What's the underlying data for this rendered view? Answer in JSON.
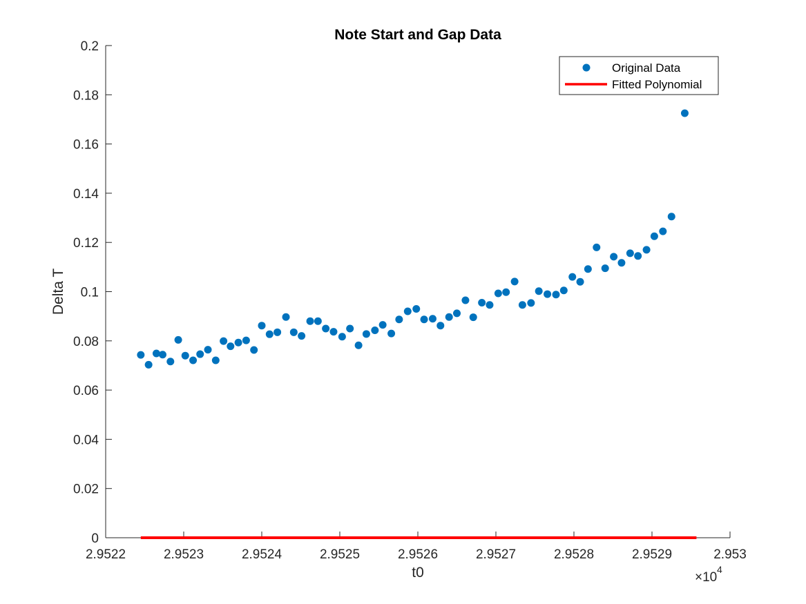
{
  "chart_data": {
    "type": "scatter",
    "title": "Note Start and Gap Data",
    "xlabel": "t0",
    "ylabel": "Delta T",
    "x_exponent_label": "×10",
    "x_exponent_power": "4",
    "xlim": [
      2.9522,
      2.953
    ],
    "ylim": [
      0,
      0.2
    ],
    "x_ticks": [
      2.9522,
      2.9523,
      2.9524,
      2.9525,
      2.9526,
      2.9527,
      2.9528,
      2.9529,
      2.953
    ],
    "x_tick_labels": [
      "2.9522",
      "2.9523",
      "2.9524",
      "2.9525",
      "2.9526",
      "2.9527",
      "2.9528",
      "2.9529",
      "2.953"
    ],
    "y_ticks": [
      0,
      0.02,
      0.04,
      0.06,
      0.08,
      0.1,
      0.12,
      0.14,
      0.16,
      0.18,
      0.2
    ],
    "y_tick_labels": [
      "0",
      "0.02",
      "0.04",
      "0.06",
      "0.08",
      "0.1",
      "0.12",
      "0.14",
      "0.16",
      "0.18",
      "0.2"
    ],
    "grid": false,
    "legend_position": "top-right",
    "series": [
      {
        "name": "Original Data",
        "kind": "scatter",
        "color": "#0072BD",
        "x": [
          2.952245,
          2.952255,
          2.952265,
          2.952273,
          2.952283,
          2.952293,
          2.952302,
          2.952312,
          2.952321,
          2.952331,
          2.952341,
          2.952351,
          2.95236,
          2.95237,
          2.95238,
          2.95239,
          2.9524,
          2.95241,
          2.95242,
          2.952431,
          2.952441,
          2.952451,
          2.952462,
          2.952472,
          2.952482,
          2.952492,
          2.952503,
          2.952513,
          2.952524,
          2.952534,
          2.952545,
          2.952555,
          2.952566,
          2.952576,
          2.952587,
          2.952598,
          2.952608,
          2.952619,
          2.952629,
          2.95264,
          2.95265,
          2.952661,
          2.952671,
          2.952682,
          2.952692,
          2.952703,
          2.952713,
          2.952724,
          2.952734,
          2.952745,
          2.952755,
          2.952766,
          2.952777,
          2.952787,
          2.952798,
          2.952808,
          2.952818,
          2.952829,
          2.95284,
          2.952851,
          2.952861,
          2.952872,
          2.952882,
          2.952893,
          2.952903,
          2.952914,
          2.952925,
          2.952942
        ],
        "y": [
          0.0743,
          0.0703,
          0.0749,
          0.0744,
          0.0716,
          0.0804,
          0.074,
          0.0721,
          0.0746,
          0.0764,
          0.0721,
          0.0799,
          0.0778,
          0.0793,
          0.0802,
          0.0763,
          0.0862,
          0.0827,
          0.0835,
          0.0897,
          0.0835,
          0.082,
          0.088,
          0.088,
          0.085,
          0.0837,
          0.0817,
          0.085,
          0.0782,
          0.0828,
          0.0843,
          0.0865,
          0.083,
          0.0887,
          0.092,
          0.093,
          0.0887,
          0.089,
          0.0862,
          0.0897,
          0.0912,
          0.0965,
          0.0896,
          0.0955,
          0.0946,
          0.0993,
          0.0998,
          0.1041,
          0.0946,
          0.0954,
          0.1002,
          0.099,
          0.0988,
          0.1005,
          0.106,
          0.104,
          0.1092,
          0.118,
          0.1095,
          0.1142,
          0.1117,
          0.1156,
          0.1145,
          0.117,
          0.1225,
          0.1245,
          0.1305,
          0.1725
        ]
      },
      {
        "name": "Fitted Polynomial",
        "kind": "line",
        "color": "#FF0000",
        "x": [
          2.952245,
          2.952957
        ],
        "y": [
          0,
          0
        ]
      }
    ]
  }
}
